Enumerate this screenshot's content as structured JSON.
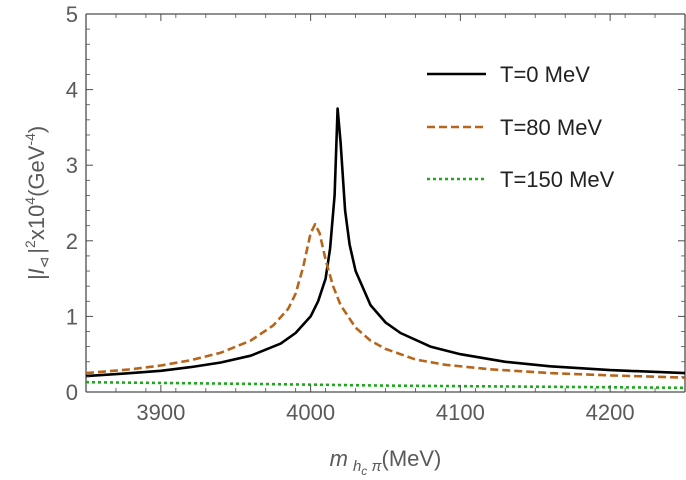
{
  "chart_data": {
    "type": "line",
    "xlabel": {
      "main": "m",
      "sub": "h",
      "subsub": "c",
      "sub2": " π",
      "unit": "(MeV)"
    },
    "ylabel": {
      "text": "|I",
      "sub": "⊲",
      "mid": "|",
      "sup": "2",
      "mid2": "x10",
      "sup2": "4",
      "unit": "(GeV",
      "sup3": "-4",
      "close": ")"
    },
    "xlim": [
      3850,
      4250
    ],
    "ylim": [
      0,
      5
    ],
    "xticks": [
      3900,
      4000,
      4100,
      4200
    ],
    "yticks": [
      0,
      1,
      2,
      3,
      4,
      5
    ],
    "legend_position": "top-right",
    "series": [
      {
        "name": "T=0 MeV",
        "color": "#000000",
        "style": "solid",
        "x": [
          3850,
          3880,
          3900,
          3920,
          3940,
          3960,
          3980,
          3990,
          4000,
          4005,
          4010,
          4013,
          4016,
          4018,
          4020,
          4023,
          4026,
          4030,
          4040,
          4050,
          4060,
          4080,
          4100,
          4130,
          4160,
          4200,
          4250
        ],
        "values": [
          0.21,
          0.25,
          0.28,
          0.33,
          0.39,
          0.48,
          0.64,
          0.78,
          1.0,
          1.2,
          1.5,
          1.9,
          2.6,
          3.75,
          3.3,
          2.4,
          1.95,
          1.6,
          1.15,
          0.92,
          0.78,
          0.6,
          0.5,
          0.4,
          0.34,
          0.29,
          0.25
        ]
      },
      {
        "name": "T=80 MeV",
        "color": "#b8651c",
        "style": "dashed",
        "x": [
          3850,
          3880,
          3900,
          3920,
          3940,
          3960,
          3975,
          3985,
          3990,
          3995,
          4000,
          4003,
          4006,
          4010,
          4015,
          4020,
          4030,
          4040,
          4050,
          4070,
          4090,
          4120,
          4160,
          4200,
          4250
        ],
        "values": [
          0.25,
          0.3,
          0.35,
          0.42,
          0.52,
          0.68,
          0.88,
          1.1,
          1.3,
          1.65,
          2.1,
          2.22,
          2.1,
          1.75,
          1.4,
          1.15,
          0.85,
          0.68,
          0.57,
          0.43,
          0.36,
          0.3,
          0.25,
          0.22,
          0.19
        ]
      },
      {
        "name": "T=150 MeV",
        "color": "#1ea81e",
        "style": "dotted",
        "x": [
          3850,
          3950,
          4050,
          4150,
          4250
        ],
        "values": [
          0.13,
          0.11,
          0.085,
          0.07,
          0.055
        ]
      }
    ]
  }
}
